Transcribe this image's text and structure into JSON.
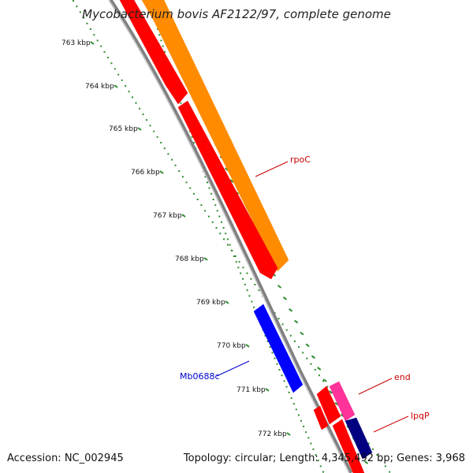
{
  "title": "Mycobacterium bovis AF2122/97, complete genome",
  "footer": {
    "accession": "Accession: NC_002945",
    "summary": "Topology: circular; Length: 4,345,492 bp; Genes: 3,968"
  },
  "ruler": {
    "color": "#2e8b2e",
    "ticks": [
      "763 kbp",
      "764 kbp",
      "765 kbp",
      "766 kbp",
      "767 kbp",
      "768 kbp",
      "769 kbp",
      "770 kbp",
      "771 kbp",
      "772 kbp"
    ]
  },
  "backbone_color": "#808080",
  "genes": [
    {
      "label": "rpoC",
      "color": "#ff0000",
      "label_color": "#cc0000"
    },
    {
      "label": "Mb0688c",
      "color": "#0000ff",
      "label_color": "#0000cc"
    },
    {
      "label": "end",
      "color": "#ff0000",
      "label_color": "#cc0000"
    },
    {
      "label": "lpqP",
      "color": "#ff0000",
      "label_color": "#cc0000"
    }
  ],
  "feature_colors": {
    "cds": "#ff0000",
    "gene": "#ff8c00",
    "reverse_cds": "#0000ff",
    "misc": "#ff3399",
    "other": "#000080"
  }
}
